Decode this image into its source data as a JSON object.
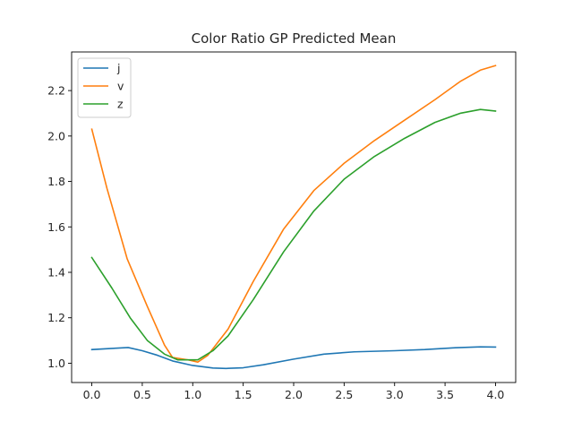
{
  "chart_data": {
    "type": "line",
    "title": "Color Ratio GP Predicted Mean",
    "xlabel": "",
    "ylabel": "",
    "xlim": [
      -0.2,
      4.2
    ],
    "ylim": [
      0.915,
      2.37
    ],
    "xticks": [
      0.0,
      0.5,
      1.0,
      1.5,
      2.0,
      2.5,
      3.0,
      3.5,
      4.0
    ],
    "xtick_labels": [
      "0.0",
      "0.5",
      "1.0",
      "1.5",
      "2.0",
      "2.5",
      "3.0",
      "3.5",
      "4.0"
    ],
    "yticks": [
      1.0,
      1.2,
      1.4,
      1.6,
      1.8,
      2.0,
      2.2
    ],
    "ytick_labels": [
      "1.0",
      "1.2",
      "1.4",
      "1.6",
      "1.8",
      "2.0",
      "2.2"
    ],
    "grid": false,
    "legend_position": "top-left",
    "series": [
      {
        "name": "j",
        "color": "#1f77b4",
        "x": [
          0.0,
          0.2,
          0.36,
          0.5,
          0.65,
          0.8,
          1.0,
          1.2,
          1.33,
          1.5,
          1.7,
          2.0,
          2.3,
          2.6,
          3.0,
          3.3,
          3.6,
          3.85,
          4.0
        ],
        "y": [
          1.06,
          1.065,
          1.069,
          1.055,
          1.035,
          1.01,
          0.99,
          0.979,
          0.977,
          0.98,
          0.993,
          1.018,
          1.04,
          1.05,
          1.055,
          1.06,
          1.068,
          1.072,
          1.071
        ]
      },
      {
        "name": "v",
        "color": "#ff7f0e",
        "x": [
          0.0,
          0.15,
          0.35,
          0.55,
          0.72,
          0.8,
          0.95,
          1.05,
          1.15,
          1.35,
          1.6,
          1.9,
          2.2,
          2.5,
          2.8,
          3.1,
          3.4,
          3.65,
          3.85,
          4.0
        ],
        "y": [
          2.03,
          1.77,
          1.46,
          1.25,
          1.08,
          1.025,
          1.015,
          1.005,
          1.035,
          1.15,
          1.36,
          1.59,
          1.76,
          1.88,
          1.98,
          2.07,
          2.16,
          2.24,
          2.29,
          2.31
        ]
      },
      {
        "name": "z",
        "color": "#2ca02c",
        "x": [
          0.0,
          0.2,
          0.38,
          0.55,
          0.72,
          0.85,
          0.95,
          1.05,
          1.2,
          1.35,
          1.6,
          1.9,
          2.2,
          2.5,
          2.8,
          3.1,
          3.4,
          3.65,
          3.85,
          4.0
        ],
        "y": [
          1.465,
          1.33,
          1.2,
          1.1,
          1.04,
          1.015,
          1.015,
          1.015,
          1.055,
          1.12,
          1.28,
          1.49,
          1.67,
          1.81,
          1.91,
          1.99,
          2.06,
          2.1,
          2.117,
          2.11
        ]
      }
    ]
  }
}
